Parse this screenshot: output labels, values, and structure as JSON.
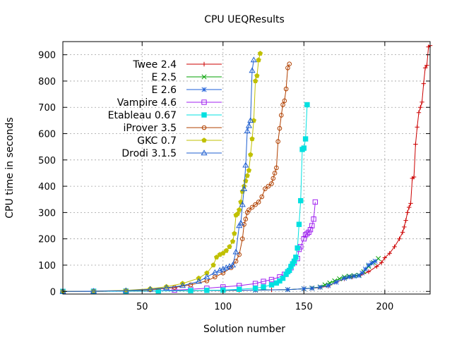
{
  "chart_data": {
    "type": "scatter",
    "title": "CPU UEQResults",
    "xlabel": "Solution number",
    "ylabel": "CPU time in seconds",
    "xlim": [
      1,
      228
    ],
    "ylim": [
      -10,
      950
    ],
    "x_ticks": [
      50,
      100,
      150,
      200
    ],
    "y_ticks": [
      0,
      100,
      200,
      300,
      400,
      500,
      600,
      700,
      800,
      900
    ],
    "grid": true,
    "legend_position": "top-left",
    "series": [
      {
        "name": "Twee 2.4",
        "color": "#cc0000",
        "marker": "plus",
        "points": [
          [
            1,
            0
          ],
          [
            20,
            0.5
          ],
          [
            40,
            1
          ],
          [
            60,
            2
          ],
          [
            80,
            3
          ],
          [
            100,
            4
          ],
          [
            110,
            4
          ],
          [
            120,
            5
          ],
          [
            130,
            6
          ],
          [
            140,
            7
          ],
          [
            150,
            10
          ],
          [
            155,
            12
          ],
          [
            160,
            15
          ],
          [
            165,
            20
          ],
          [
            170,
            35
          ],
          [
            175,
            48
          ],
          [
            180,
            55
          ],
          [
            185,
            62
          ],
          [
            190,
            75
          ],
          [
            195,
            95
          ],
          [
            198,
            110
          ],
          [
            200,
            128
          ],
          [
            203,
            145
          ],
          [
            206,
            170
          ],
          [
            209,
            200
          ],
          [
            211,
            225
          ],
          [
            212,
            245
          ],
          [
            213,
            270
          ],
          [
            214,
            300
          ],
          [
            215,
            320
          ],
          [
            216,
            335
          ],
          [
            217,
            430
          ],
          [
            218,
            435
          ],
          [
            219,
            560
          ],
          [
            220,
            625
          ],
          [
            221,
            680
          ],
          [
            222,
            700
          ],
          [
            223,
            720
          ],
          [
            224,
            790
          ],
          [
            225,
            850
          ],
          [
            226,
            860
          ],
          [
            227,
            930
          ],
          [
            228,
            935
          ]
        ]
      },
      {
        "name": "E 2.5",
        "color": "#00a000",
        "marker": "x",
        "points": [
          [
            1,
            0
          ],
          [
            20,
            0.5
          ],
          [
            40,
            1
          ],
          [
            60,
            2
          ],
          [
            80,
            3
          ],
          [
            100,
            4
          ],
          [
            120,
            5
          ],
          [
            140,
            7
          ],
          [
            150,
            10
          ],
          [
            155,
            13
          ],
          [
            160,
            17
          ],
          [
            163,
            25
          ],
          [
            166,
            32
          ],
          [
            169,
            40
          ],
          [
            172,
            48
          ],
          [
            175,
            55
          ],
          [
            178,
            58
          ],
          [
            181,
            60
          ],
          [
            184,
            62
          ],
          [
            187,
            75
          ],
          [
            190,
            95
          ],
          [
            193,
            110
          ],
          [
            196,
            125
          ]
        ]
      },
      {
        "name": "E 2.6",
        "color": "#1e5fd8",
        "marker": "asterisk",
        "points": [
          [
            1,
            0
          ],
          [
            20,
            0.5
          ],
          [
            40,
            1
          ],
          [
            60,
            2
          ],
          [
            80,
            3
          ],
          [
            100,
            4
          ],
          [
            120,
            5
          ],
          [
            140,
            7
          ],
          [
            150,
            10
          ],
          [
            155,
            12
          ],
          [
            160,
            16
          ],
          [
            165,
            22
          ],
          [
            170,
            35
          ],
          [
            175,
            50
          ],
          [
            178,
            55
          ],
          [
            181,
            58
          ],
          [
            184,
            60
          ],
          [
            186,
            70
          ],
          [
            188,
            85
          ],
          [
            190,
            100
          ],
          [
            192,
            108
          ],
          [
            194,
            115
          ]
        ]
      },
      {
        "name": "Vampire 4.6",
        "color": "#a020f0",
        "marker": "square",
        "points": [
          [
            1,
            0
          ],
          [
            20,
            0.5
          ],
          [
            40,
            1
          ],
          [
            60,
            3
          ],
          [
            70,
            5
          ],
          [
            80,
            8
          ],
          [
            90,
            12
          ],
          [
            100,
            17
          ],
          [
            110,
            22
          ],
          [
            120,
            30
          ],
          [
            125,
            38
          ],
          [
            130,
            45
          ],
          [
            135,
            55
          ],
          [
            138,
            65
          ],
          [
            140,
            75
          ],
          [
            142,
            90
          ],
          [
            144,
            110
          ],
          [
            146,
            125
          ],
          [
            147,
            160
          ],
          [
            148,
            170
          ],
          [
            150,
            200
          ],
          [
            151,
            215
          ],
          [
            152,
            220
          ],
          [
            153,
            225
          ],
          [
            154,
            235
          ],
          [
            155,
            250
          ],
          [
            156,
            275
          ],
          [
            157,
            340
          ]
        ]
      },
      {
        "name": "Etableau 0.67",
        "color": "#00e0e0",
        "marker": "filledsquare",
        "points": [
          [
            1,
            0
          ],
          [
            20,
            0.5
          ],
          [
            40,
            1
          ],
          [
            60,
            2
          ],
          [
            80,
            3
          ],
          [
            90,
            4
          ],
          [
            100,
            5
          ],
          [
            110,
            8
          ],
          [
            120,
            12
          ],
          [
            125,
            17
          ],
          [
            130,
            25
          ],
          [
            133,
            32
          ],
          [
            135,
            40
          ],
          [
            137,
            50
          ],
          [
            139,
            65
          ],
          [
            140,
            75
          ],
          [
            141,
            80
          ],
          [
            142,
            95
          ],
          [
            143,
            105
          ],
          [
            144,
            115
          ],
          [
            145,
            130
          ],
          [
            146,
            165
          ],
          [
            147,
            255
          ],
          [
            148,
            345
          ],
          [
            149,
            540
          ],
          [
            150,
            545
          ],
          [
            151,
            580
          ],
          [
            152,
            710
          ]
        ]
      },
      {
        "name": "iProver 3.5",
        "color": "#b04000",
        "marker": "circle",
        "points": [
          [
            1,
            0
          ],
          [
            20,
            1
          ],
          [
            40,
            3
          ],
          [
            55,
            6
          ],
          [
            70,
            15
          ],
          [
            80,
            25
          ],
          [
            90,
            40
          ],
          [
            95,
            55
          ],
          [
            100,
            70
          ],
          [
            105,
            90
          ],
          [
            108,
            115
          ],
          [
            110,
            140
          ],
          [
            112,
            200
          ],
          [
            113,
            255
          ],
          [
            114,
            275
          ],
          [
            115,
            300
          ],
          [
            116,
            310
          ],
          [
            118,
            320
          ],
          [
            120,
            330
          ],
          [
            122,
            340
          ],
          [
            124,
            360
          ],
          [
            126,
            390
          ],
          [
            128,
            400
          ],
          [
            130,
            410
          ],
          [
            131,
            430
          ],
          [
            132,
            450
          ],
          [
            133,
            470
          ],
          [
            134,
            570
          ],
          [
            135,
            620
          ],
          [
            136,
            670
          ],
          [
            137,
            710
          ],
          [
            138,
            725
          ],
          [
            139,
            770
          ],
          [
            140,
            850
          ],
          [
            141,
            865
          ]
        ]
      },
      {
        "name": "GKC 0.7",
        "color": "#c0c000",
        "marker": "filledpentagon",
        "points": [
          [
            1,
            0
          ],
          [
            20,
            1
          ],
          [
            40,
            4
          ],
          [
            55,
            10
          ],
          [
            65,
            18
          ],
          [
            75,
            30
          ],
          [
            85,
            50
          ],
          [
            90,
            70
          ],
          [
            94,
            100
          ],
          [
            96,
            130
          ],
          [
            98,
            140
          ],
          [
            100,
            145
          ],
          [
            102,
            155
          ],
          [
            104,
            170
          ],
          [
            106,
            190
          ],
          [
            107,
            220
          ],
          [
            108,
            290
          ],
          [
            109,
            295
          ],
          [
            110,
            310
          ],
          [
            111,
            340
          ],
          [
            112,
            380
          ],
          [
            113,
            400
          ],
          [
            114,
            420
          ],
          [
            115,
            440
          ],
          [
            116,
            460
          ],
          [
            117,
            520
          ],
          [
            118,
            580
          ],
          [
            119,
            650
          ],
          [
            120,
            800
          ],
          [
            121,
            820
          ],
          [
            122,
            880
          ],
          [
            123,
            905
          ]
        ]
      },
      {
        "name": "Drodi 3.1.5",
        "color": "#1f5fd0",
        "marker": "triangle",
        "points": [
          [
            1,
            0
          ],
          [
            20,
            1
          ],
          [
            40,
            3
          ],
          [
            55,
            8
          ],
          [
            65,
            14
          ],
          [
            75,
            22
          ],
          [
            85,
            38
          ],
          [
            90,
            55
          ],
          [
            95,
            72
          ],
          [
            98,
            80
          ],
          [
            100,
            85
          ],
          [
            102,
            90
          ],
          [
            104,
            95
          ],
          [
            106,
            100
          ],
          [
            108,
            150
          ],
          [
            110,
            250
          ],
          [
            111,
            260
          ],
          [
            112,
            330
          ],
          [
            113,
            390
          ],
          [
            114,
            480
          ],
          [
            115,
            610
          ],
          [
            116,
            630
          ],
          [
            117,
            650
          ],
          [
            118,
            840
          ],
          [
            119,
            880
          ]
        ]
      }
    ]
  }
}
